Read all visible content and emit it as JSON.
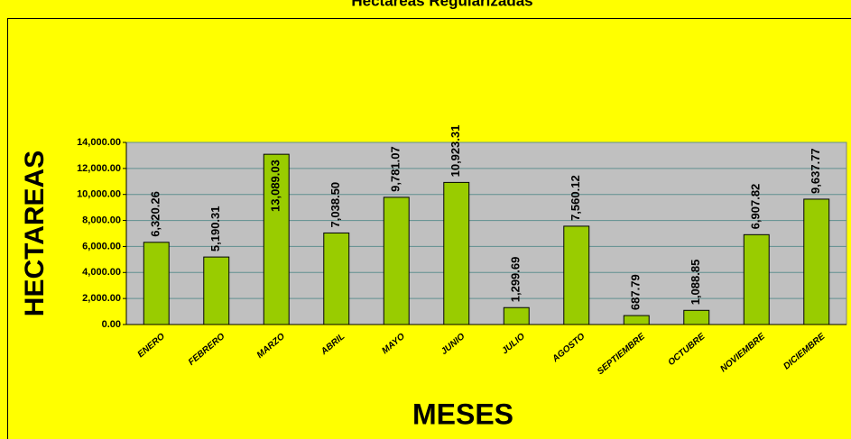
{
  "chart_data": {
    "type": "bar",
    "title": "Hectareas Regularizadas",
    "x_label": "MESES",
    "y_label": "HECTAREAS",
    "categories": [
      "ENERO",
      "FEBRERO",
      "MARZO",
      "ABRIL",
      "MAYO",
      "JUNIO",
      "JULIO",
      "AGOSTO",
      "SEPTIEMBRE",
      "OCTUBRE",
      "NOVIEMBRE",
      "DICIEMBRE"
    ],
    "values": [
      6320.26,
      5190.31,
      13089.03,
      7038.5,
      9781.07,
      10923.31,
      1299.69,
      7560.12,
      687.79,
      1088.85,
      6907.82,
      9637.77
    ],
    "value_labels": [
      "6,320.26",
      "5,190.31",
      "13,089.03",
      "7,038.50",
      "9,781.07",
      "10,923.31",
      "1,299.69",
      "7,560.12",
      "687.79",
      "1,088.85",
      "6,907.82",
      "9,637.77"
    ],
    "color": "#99cc00",
    "ylim": [
      0,
      14000
    ],
    "yticks": [
      {
        "value": 0,
        "label": "0.00"
      },
      {
        "value": 2000,
        "label": "2,000.00"
      },
      {
        "value": 4000,
        "label": "4,000.00"
      },
      {
        "value": 6000,
        "label": "6,000.00"
      },
      {
        "value": 8000,
        "label": "8,000.00"
      },
      {
        "value": 10000,
        "label": "10,000.00"
      },
      {
        "value": 12000,
        "label": "12,000.00"
      },
      {
        "value": 14000,
        "label": "14,000.00"
      }
    ],
    "grid": true
  }
}
